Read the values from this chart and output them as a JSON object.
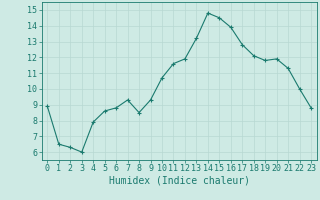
{
  "x": [
    0,
    1,
    2,
    3,
    4,
    5,
    6,
    7,
    8,
    9,
    10,
    11,
    12,
    13,
    14,
    15,
    16,
    17,
    18,
    19,
    20,
    21,
    22,
    23
  ],
  "y": [
    8.9,
    6.5,
    6.3,
    6.0,
    7.9,
    8.6,
    8.8,
    9.3,
    8.5,
    9.3,
    10.7,
    11.6,
    11.9,
    13.2,
    14.8,
    14.5,
    13.9,
    12.8,
    12.1,
    11.8,
    11.9,
    11.3,
    10.0,
    8.8
  ],
  "ylim": [
    5.5,
    15.5
  ],
  "xlim": [
    -0.5,
    23.5
  ],
  "yticks": [
    6,
    7,
    8,
    9,
    10,
    11,
    12,
    13,
    14,
    15
  ],
  "xticks": [
    0,
    1,
    2,
    3,
    4,
    5,
    6,
    7,
    8,
    9,
    10,
    11,
    12,
    13,
    14,
    15,
    16,
    17,
    18,
    19,
    20,
    21,
    22,
    23
  ],
  "xlabel": "Humidex (Indice chaleur)",
  "line_color": "#1a7a6e",
  "marker_color": "#1a7a6e",
  "bg_color": "#ceeae4",
  "grid_color": "#b8d8d2",
  "axis_color": "#1a7a6e",
  "tick_color": "#1a7a6e",
  "label_fontsize": 6,
  "xlabel_fontsize": 7
}
